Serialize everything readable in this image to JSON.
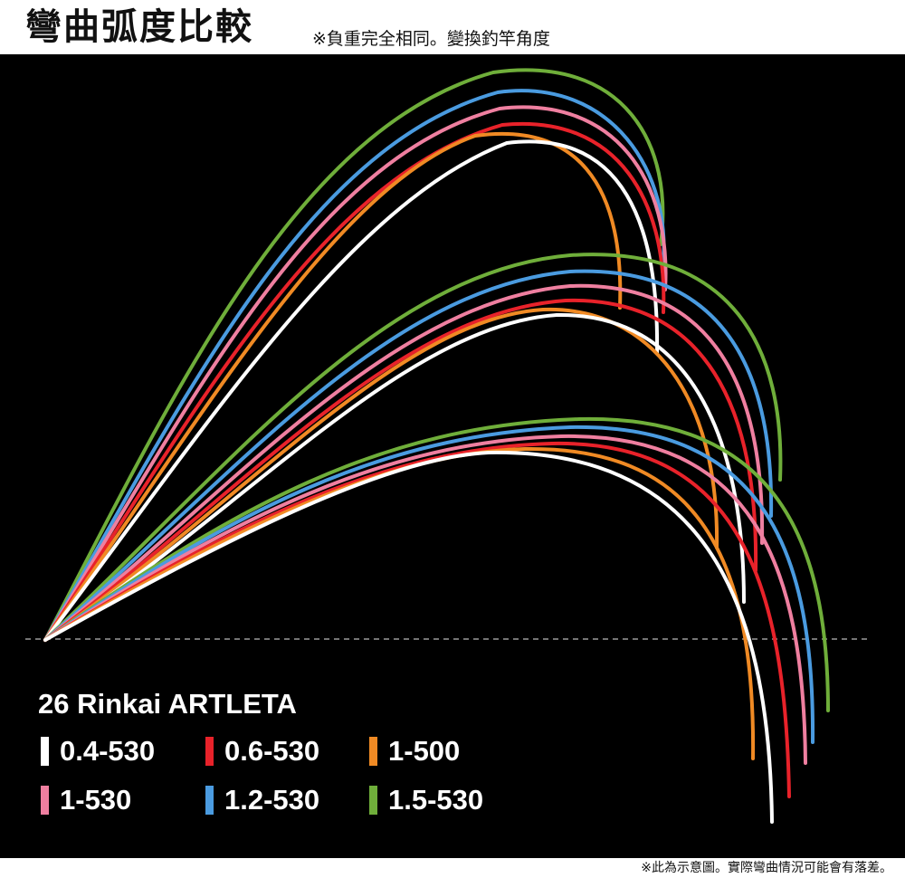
{
  "header": {
    "title": "彎曲弧度比較",
    "subtitle": "※負重完全相同。變換釣竿角度"
  },
  "legend": {
    "title": "26 Rinkai ARTLETA",
    "items": [
      {
        "label": "0.4-530",
        "color": "#ffffff"
      },
      {
        "label": "0.6-530",
        "color": "#e8222a"
      },
      {
        "label": "1-500",
        "color": "#f08a24"
      },
      {
        "label": "1-530",
        "color": "#ef7fa0"
      },
      {
        "label": "1.2-530",
        "color": "#4a9be0"
      },
      {
        "label": "1.5-530",
        "color": "#6fae3a"
      }
    ]
  },
  "footer": {
    "note": "※此為示意圖。實際彎曲情況可能會有落差。"
  }
}
